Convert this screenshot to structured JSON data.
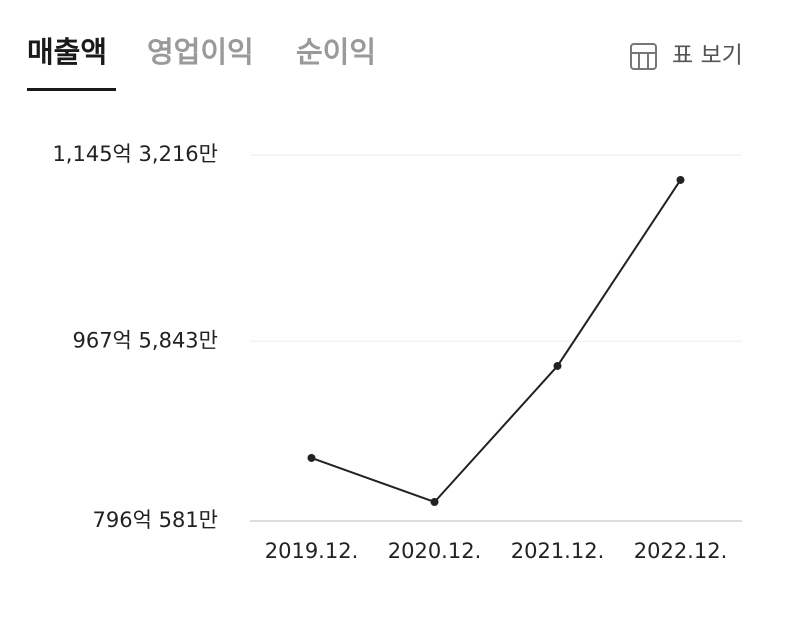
{
  "tabs": [
    "매출액",
    "영업이익",
    "순이익"
  ],
  "view_toggle": "표 보기",
  "chart_data": {
    "type": "line",
    "categories": [
      "2019.12.",
      "2020.12.",
      "2021.12.",
      "2022.12."
    ],
    "series": [
      {
        "color": "#222222",
        "values": [
          8562000,
          8142000,
          9440000,
          11215000
        ]
      }
    ],
    "ylim": [
      7960581,
      11453216
    ],
    "yticks": [
      {
        "value": 7960581,
        "label": "796억 581만"
      },
      {
        "value": 9675843,
        "label": "967억 5,843만"
      },
      {
        "value": 11453216,
        "label": "1,145억 3,216만"
      }
    ],
    "grid": true
  }
}
